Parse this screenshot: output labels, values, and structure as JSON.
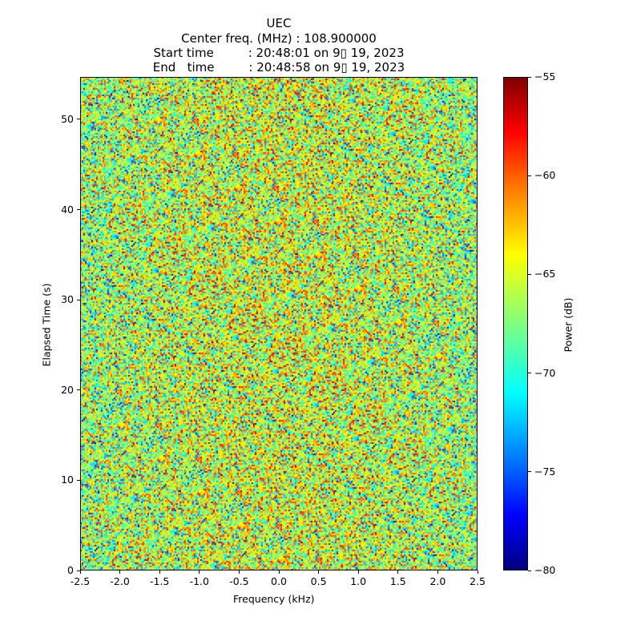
{
  "chart_data": {
    "type": "heatmap",
    "title_lines": [
      "UEC",
      "Center freq. (MHz) : 108.900000",
      "Start time         : 20:48:01 on 9▯ 19, 2023",
      "End   time         : 20:48:58 on 9▯ 19, 2023"
    ],
    "xlabel": "Frequency (kHz)",
    "ylabel": "Elapsed Time (s)",
    "xlim": [
      -2.5,
      2.5
    ],
    "ylim": [
      0,
      54.7
    ],
    "xticks": [
      "-2.5",
      "-2.0",
      "-1.5",
      "-1.0",
      "-0.5",
      "0.0",
      "0.5",
      "1.0",
      "1.5",
      "2.0",
      "2.5"
    ],
    "xtick_values": [
      -2.5,
      -2.0,
      -1.5,
      -1.0,
      -0.5,
      0.0,
      0.5,
      1.0,
      1.5,
      2.0,
      2.5
    ],
    "yticks": [
      "0",
      "10",
      "20",
      "30",
      "40",
      "50"
    ],
    "ytick_values": [
      0,
      10,
      20,
      30,
      40,
      50
    ],
    "colormap": "jet",
    "colorbar": {
      "label": "Power (dB)",
      "range": [
        -80,
        -55
      ],
      "ticks": [
        "-80",
        "-75",
        "-70",
        "-65",
        "-60",
        "-55"
      ],
      "tick_values": [
        -80,
        -75,
        -70,
        -65,
        -60,
        -55
      ]
    },
    "z_description": "noise-like power, mean approx -67 dB, std approx 4 dB, slightly higher near center frequency",
    "z_mean": -67,
    "z_std": 4
  }
}
